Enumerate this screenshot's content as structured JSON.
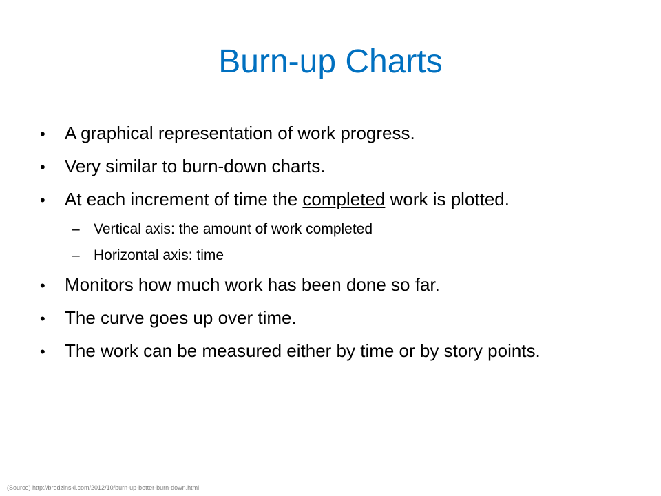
{
  "slide": {
    "title": "Burn-up Charts",
    "bullet_marker": "•",
    "sub_marker": "–",
    "bullets": [
      "A graphical representation of work progress.",
      "Very similar to burn-down charts."
    ],
    "bullet_3": {
      "before": "At each increment of time the ",
      "underlined": "completed",
      "after": " work is plotted."
    },
    "sub_bullets": [
      "Vertical axis: the amount of work completed",
      "Horizontal axis: time"
    ],
    "bullets_after": [
      "Monitors how much work has been done so far.",
      "The curve goes up over time.",
      "The work can be measured either by time or by story points."
    ],
    "source": "(Source) http://brodzinski.com/2012/10/burn-up-better-burn-down.html",
    "colors": {
      "title": "#0070c0",
      "body_text": "#000000",
      "source_text": "#7f7f7f",
      "background": "#ffffff"
    }
  }
}
